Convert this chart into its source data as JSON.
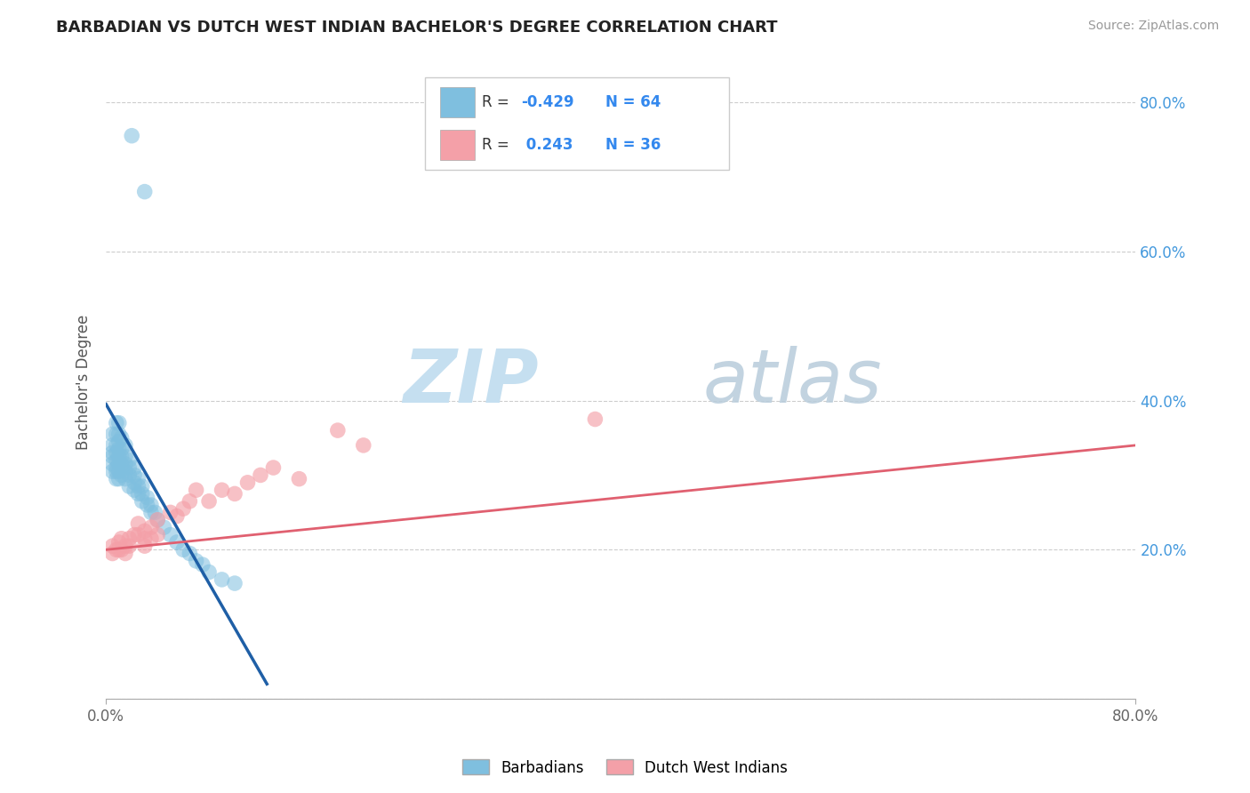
{
  "title": "BARBADIAN VS DUTCH WEST INDIAN BACHELOR'S DEGREE CORRELATION CHART",
  "source": "Source: ZipAtlas.com",
  "ylabel": "Bachelor's Degree",
  "xlim": [
    0.0,
    0.8
  ],
  "ylim": [
    0.0,
    0.85
  ],
  "yticks": [
    0.0,
    0.2,
    0.4,
    0.6,
    0.8
  ],
  "ytick_labels": [
    "",
    "20.0%",
    "40.0%",
    "60.0%",
    "80.0%"
  ],
  "legend_blue_label": "Barbadians",
  "legend_pink_label": "Dutch West Indians",
  "blue_color": "#7fbfdf",
  "pink_color": "#f4a0a8",
  "blue_line_color": "#1f5fa6",
  "pink_line_color": "#e06070",
  "background_color": "#ffffff",
  "grid_color": "#c8c8c8",
  "blue_scatter_x": [
    0.02,
    0.03,
    0.005,
    0.005,
    0.005,
    0.005,
    0.005,
    0.005,
    0.008,
    0.008,
    0.008,
    0.008,
    0.008,
    0.008,
    0.008,
    0.008,
    0.01,
    0.01,
    0.01,
    0.01,
    0.01,
    0.01,
    0.01,
    0.01,
    0.012,
    0.012,
    0.012,
    0.012,
    0.012,
    0.015,
    0.015,
    0.015,
    0.015,
    0.015,
    0.018,
    0.018,
    0.018,
    0.018,
    0.022,
    0.022,
    0.022,
    0.022,
    0.025,
    0.025,
    0.025,
    0.028,
    0.028,
    0.028,
    0.032,
    0.032,
    0.035,
    0.035,
    0.038,
    0.04,
    0.045,
    0.05,
    0.055,
    0.06,
    0.065,
    0.07,
    0.075,
    0.08,
    0.09,
    0.1
  ],
  "blue_scatter_y": [
    0.755,
    0.68,
    0.355,
    0.34,
    0.33,
    0.325,
    0.315,
    0.305,
    0.37,
    0.355,
    0.34,
    0.33,
    0.32,
    0.31,
    0.305,
    0.295,
    0.37,
    0.355,
    0.345,
    0.335,
    0.325,
    0.315,
    0.305,
    0.295,
    0.35,
    0.335,
    0.325,
    0.315,
    0.3,
    0.34,
    0.325,
    0.315,
    0.305,
    0.295,
    0.32,
    0.31,
    0.3,
    0.285,
    0.31,
    0.3,
    0.29,
    0.28,
    0.295,
    0.285,
    0.275,
    0.285,
    0.275,
    0.265,
    0.27,
    0.26,
    0.26,
    0.25,
    0.25,
    0.24,
    0.23,
    0.22,
    0.21,
    0.2,
    0.195,
    0.185,
    0.18,
    0.17,
    0.16,
    0.155
  ],
  "pink_scatter_x": [
    0.005,
    0.005,
    0.008,
    0.01,
    0.01,
    0.012,
    0.012,
    0.015,
    0.015,
    0.018,
    0.018,
    0.022,
    0.025,
    0.025,
    0.03,
    0.03,
    0.03,
    0.035,
    0.035,
    0.04,
    0.04,
    0.05,
    0.055,
    0.06,
    0.065,
    0.07,
    0.08,
    0.09,
    0.1,
    0.11,
    0.12,
    0.13,
    0.15,
    0.18,
    0.2,
    0.38
  ],
  "pink_scatter_y": [
    0.205,
    0.195,
    0.2,
    0.21,
    0.2,
    0.215,
    0.2,
    0.205,
    0.195,
    0.215,
    0.205,
    0.22,
    0.235,
    0.22,
    0.225,
    0.215,
    0.205,
    0.23,
    0.215,
    0.24,
    0.22,
    0.25,
    0.245,
    0.255,
    0.265,
    0.28,
    0.265,
    0.28,
    0.275,
    0.29,
    0.3,
    0.31,
    0.295,
    0.36,
    0.34,
    0.375
  ],
  "blue_line_x": [
    0.0,
    0.125
  ],
  "blue_line_y": [
    0.395,
    0.02
  ],
  "pink_line_x": [
    0.0,
    0.8
  ],
  "pink_line_y": [
    0.2,
    0.34
  ]
}
